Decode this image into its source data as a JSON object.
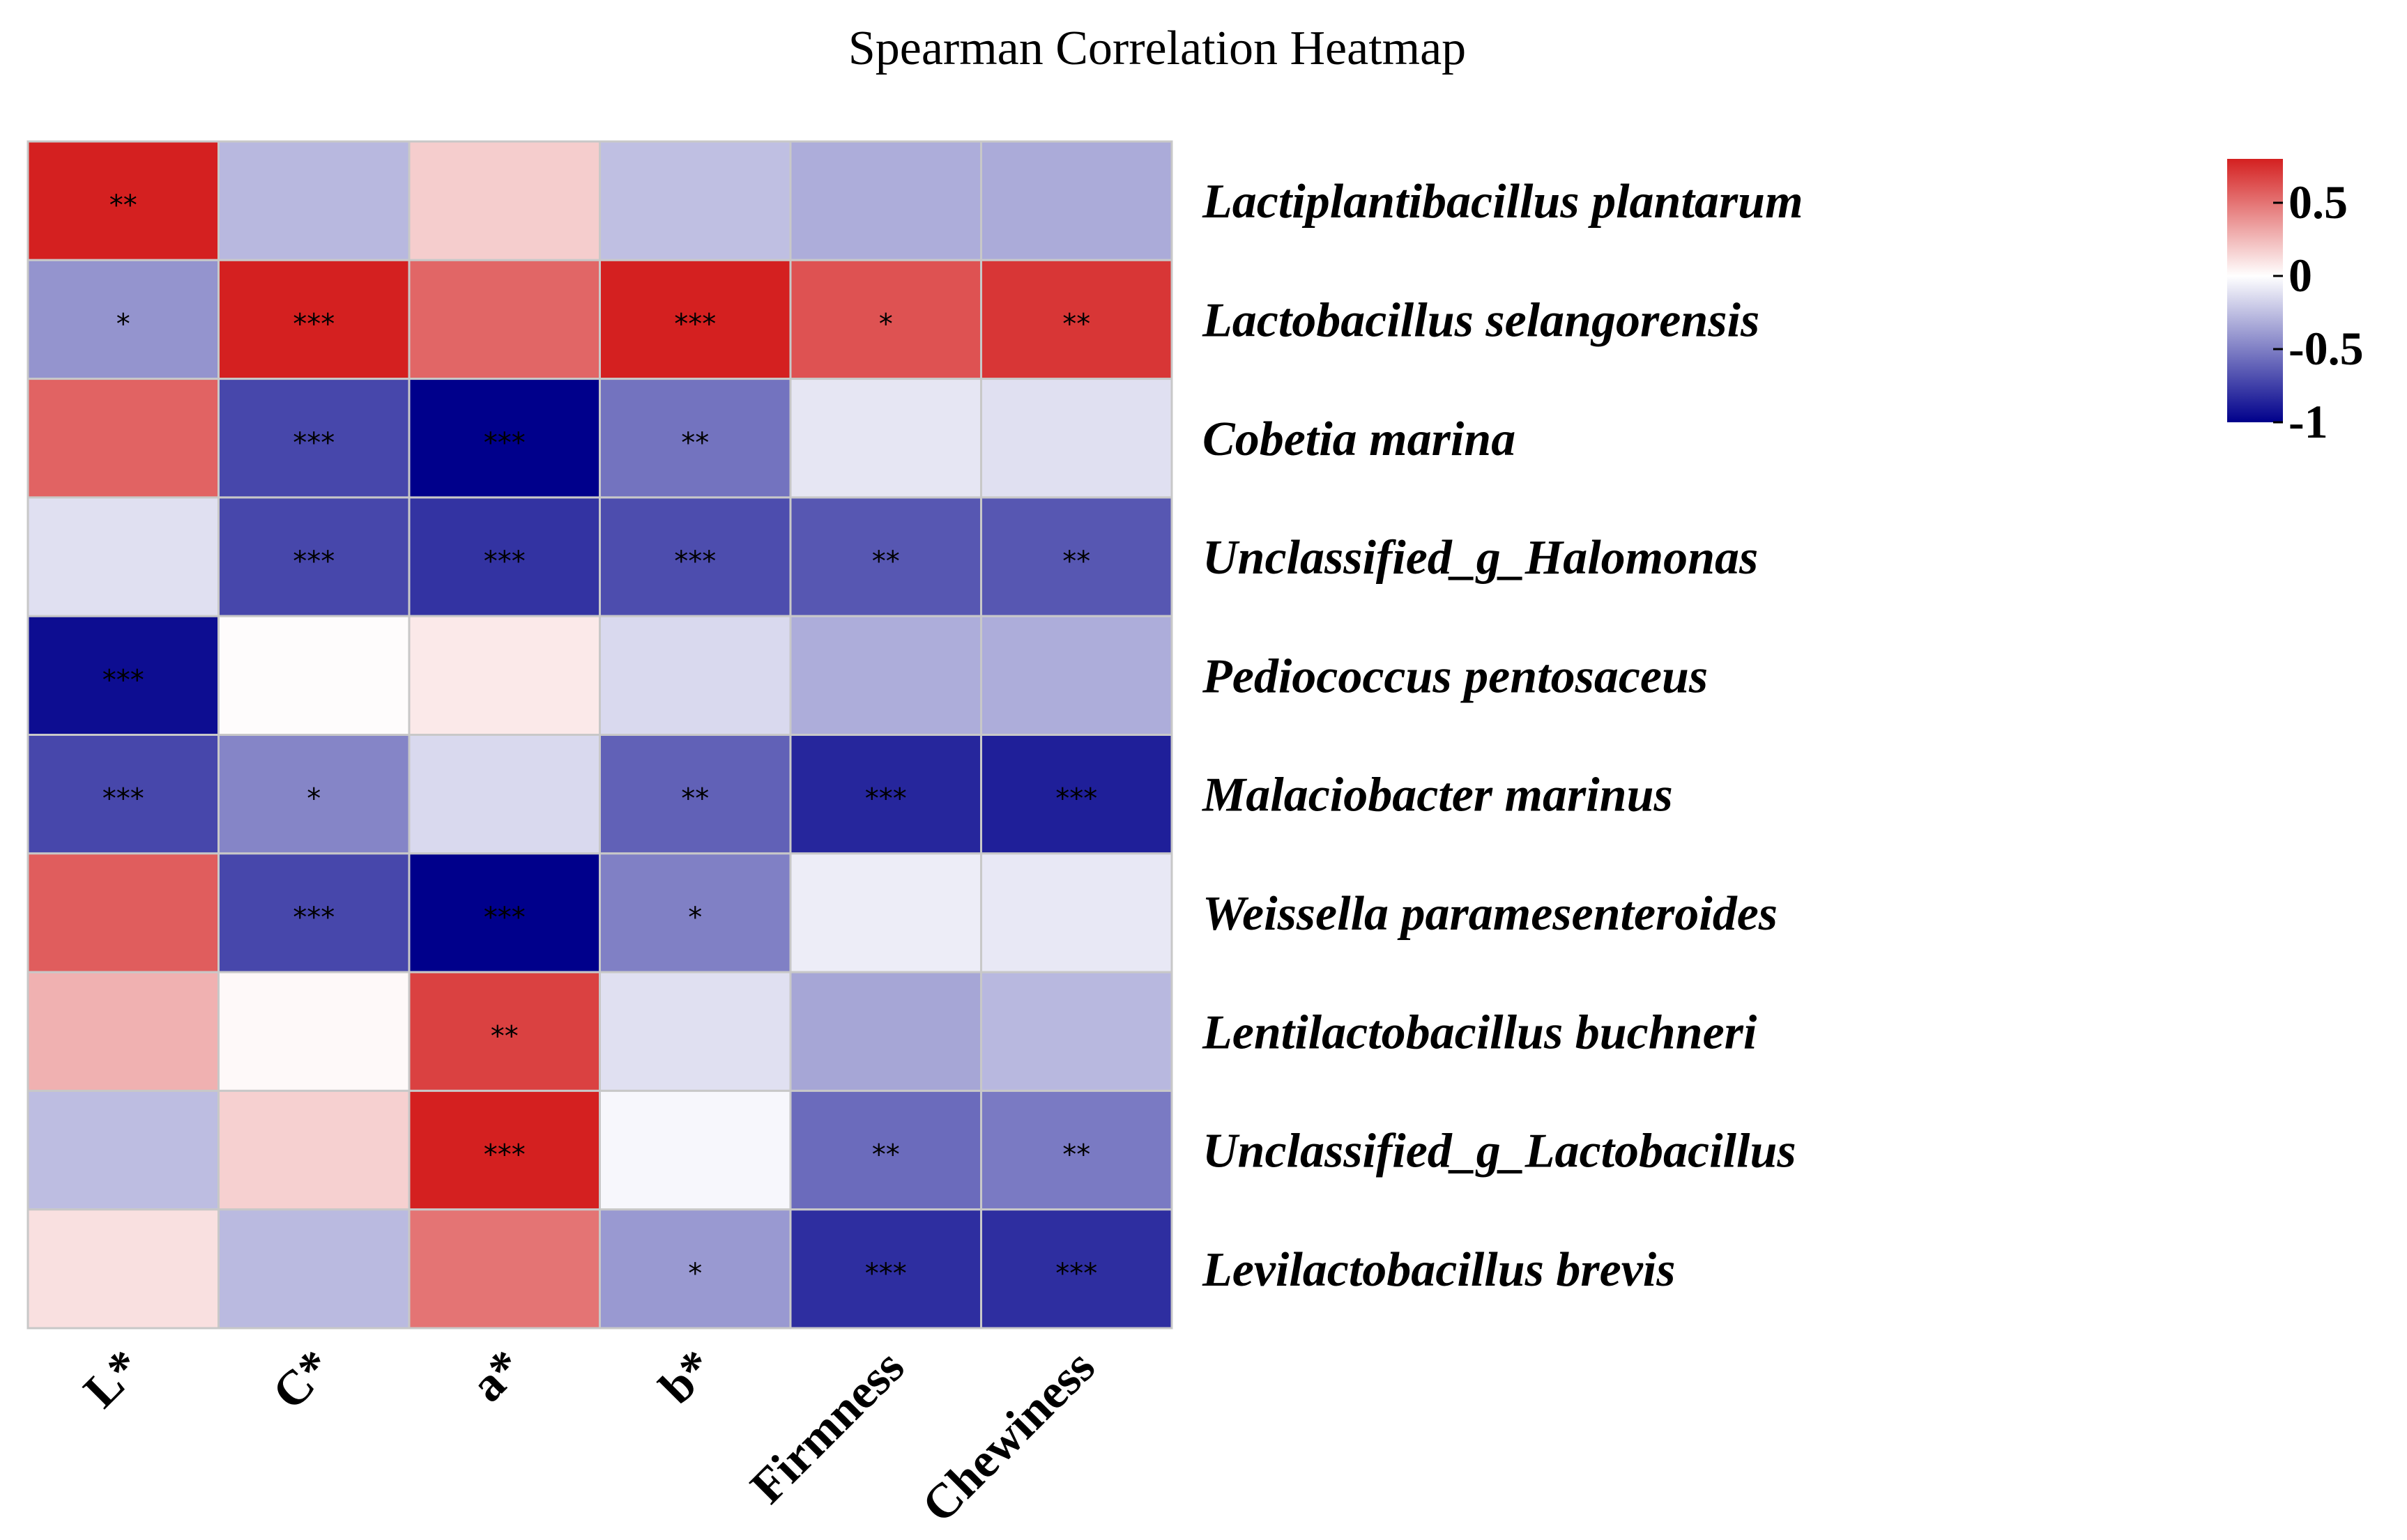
{
  "chart_data": {
    "type": "heatmap",
    "title": "Spearman Correlation Heatmap",
    "columns": [
      "L*",
      "C*",
      "a*",
      "b*",
      "Firmness",
      "Chewiness"
    ],
    "rows": [
      "Lactiplantibacillus plantarum",
      "Lactobacillus selangorensis",
      "Cobetia marina",
      "Unclassified_g_Halomonas",
      "Pediococcus pentosaceus",
      "Malaciobacter marinus",
      "Weissella paramesenteroides",
      "Lentilactobacillus buchneri",
      "Unclassified_g_Lactobacillus",
      "Levilactobacillus brevis"
    ],
    "values": [
      [
        0.82,
        -0.28,
        0.18,
        -0.25,
        -0.32,
        -0.33
      ],
      [
        -0.42,
        0.84,
        0.55,
        0.83,
        0.62,
        0.72
      ],
      [
        0.56,
        -0.72,
        -1.0,
        -0.55,
        -0.1,
        -0.12
      ],
      [
        -0.12,
        -0.72,
        -0.8,
        -0.7,
        -0.66,
        -0.66
      ],
      [
        -0.95,
        0.01,
        0.08,
        -0.15,
        -0.32,
        -0.32
      ],
      [
        -0.72,
        -0.48,
        -0.15,
        -0.62,
        -0.85,
        -0.88
      ],
      [
        0.58,
        -0.72,
        -1.0,
        -0.5,
        -0.07,
        -0.09
      ],
      [
        0.28,
        0.02,
        0.68,
        -0.12,
        -0.35,
        -0.28
      ],
      [
        -0.26,
        0.17,
        0.85,
        -0.03,
        -0.58,
        -0.52
      ],
      [
        0.11,
        -0.27,
        0.5,
        -0.4,
        -0.82,
        -0.82
      ]
    ],
    "significance": [
      [
        "**",
        "",
        "",
        "",
        "",
        ""
      ],
      [
        "*",
        "***",
        "",
        "***",
        "*",
        "**"
      ],
      [
        "",
        "***",
        "***",
        "**",
        "",
        ""
      ],
      [
        "",
        "***",
        "***",
        "***",
        "**",
        "**"
      ],
      [
        "***",
        "",
        "",
        "",
        "",
        ""
      ],
      [
        "***",
        "*",
        "",
        "**",
        "***",
        "***"
      ],
      [
        "",
        "***",
        "***",
        "*",
        "",
        ""
      ],
      [
        "",
        "",
        "**",
        "",
        "",
        ""
      ],
      [
        "",
        "",
        "***",
        "",
        "**",
        "**"
      ],
      [
        "",
        "",
        "",
        "*",
        "***",
        "***"
      ]
    ],
    "colorbar": {
      "ticks": [
        0.5,
        0,
        -0.5,
        -1
      ],
      "tick_labels": [
        "0.5",
        "0",
        "-0.5",
        "-1"
      ],
      "range": [
        -1,
        0.8
      ],
      "low_color": "#00008b",
      "mid_color": "#ffffff",
      "high_color": "#d42020"
    }
  }
}
